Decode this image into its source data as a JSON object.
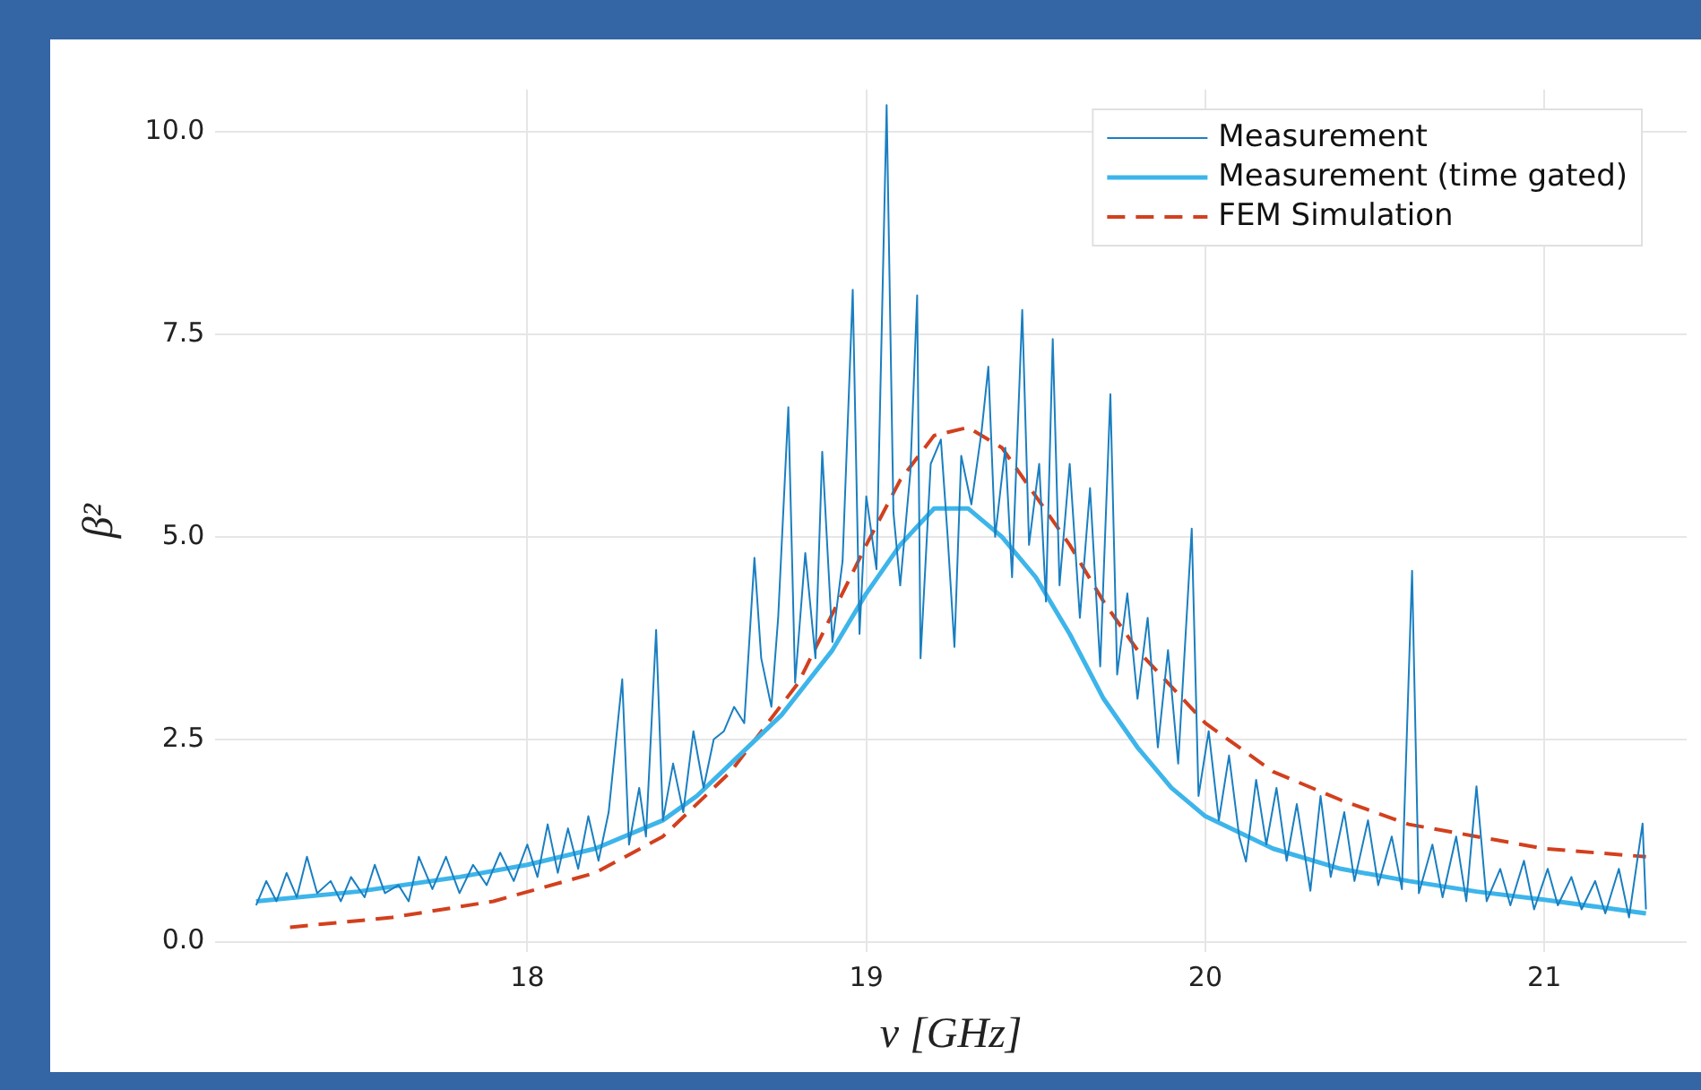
{
  "chart_data": {
    "type": "line",
    "xlabel": "ν [GHz]",
    "ylabel": "β²",
    "xlim": [
      17.08,
      21.42
    ],
    "ylim": [
      -0.13,
      10.52
    ],
    "xticks": [
      18,
      19,
      20,
      21
    ],
    "yticks": [
      {
        "value": 0,
        "label": "0.0"
      },
      2.5,
      {
        "value": 5,
        "label": "5.0"
      },
      7.5,
      {
        "value": 10,
        "label": "10.0"
      }
    ],
    "grid": true,
    "legend": "top right",
    "marker": "none",
    "series": [
      {
        "name": "Measurement",
        "color": "#1a7fc1",
        "line_style": "solid",
        "x": [
          17.2,
          17.23,
          17.26,
          17.29,
          17.32,
          17.35,
          17.38,
          17.42,
          17.45,
          17.48,
          17.52,
          17.55,
          17.58,
          17.62,
          17.65,
          17.68,
          17.72,
          17.76,
          17.8,
          17.84,
          17.88,
          17.92,
          17.96,
          18.0,
          18.03,
          18.06,
          18.09,
          18.12,
          18.15,
          18.18,
          18.21,
          18.24,
          18.28,
          18.3,
          18.33,
          18.35,
          18.38,
          18.4,
          18.43,
          18.46,
          18.49,
          18.52,
          18.55,
          18.58,
          18.61,
          18.64,
          18.67,
          18.69,
          18.72,
          18.74,
          18.77,
          18.79,
          18.82,
          18.85,
          18.87,
          18.9,
          18.93,
          18.96,
          18.98,
          19.0,
          19.03,
          19.06,
          19.08,
          19.1,
          19.13,
          19.15,
          19.16,
          19.19,
          19.22,
          19.24,
          19.26,
          19.28,
          19.31,
          19.34,
          19.36,
          19.38,
          19.41,
          19.43,
          19.46,
          19.48,
          19.51,
          19.53,
          19.55,
          19.57,
          19.6,
          19.63,
          19.66,
          19.69,
          19.72,
          19.74,
          19.77,
          19.8,
          19.83,
          19.86,
          19.89,
          19.92,
          19.96,
          19.98,
          20.01,
          20.04,
          20.07,
          20.1,
          20.12,
          20.15,
          20.18,
          20.21,
          20.24,
          20.27,
          20.31,
          20.34,
          20.37,
          20.41,
          20.44,
          20.48,
          20.51,
          20.55,
          20.58,
          20.61,
          20.63,
          20.67,
          20.7,
          20.74,
          20.77,
          20.8,
          20.83,
          20.87,
          20.9,
          20.94,
          20.97,
          21.01,
          21.04,
          21.08,
          21.11,
          21.15,
          21.18,
          21.22,
          21.25,
          21.29,
          21.3
        ],
        "values": [
          0.45,
          0.75,
          0.5,
          0.85,
          0.55,
          1.05,
          0.6,
          0.75,
          0.5,
          0.8,
          0.55,
          0.95,
          0.6,
          0.7,
          0.5,
          1.05,
          0.65,
          1.05,
          0.6,
          0.95,
          0.7,
          1.1,
          0.75,
          1.2,
          0.8,
          1.45,
          0.85,
          1.4,
          0.9,
          1.55,
          1.0,
          1.6,
          3.24,
          1.2,
          1.9,
          1.3,
          3.85,
          1.5,
          2.2,
          1.6,
          2.6,
          1.9,
          2.5,
          2.6,
          2.9,
          2.7,
          4.74,
          3.5,
          2.9,
          4.0,
          6.6,
          3.2,
          4.8,
          3.5,
          6.05,
          3.7,
          4.7,
          8.05,
          3.8,
          5.5,
          4.6,
          10.33,
          5.3,
          4.4,
          5.8,
          7.98,
          3.5,
          5.9,
          6.2,
          5.0,
          3.64,
          6.0,
          5.4,
          6.3,
          7.1,
          5.0,
          6.1,
          4.5,
          7.8,
          4.9,
          5.9,
          4.2,
          7.44,
          4.4,
          5.9,
          4.0,
          5.6,
          3.4,
          6.76,
          3.3,
          4.3,
          3.0,
          4.0,
          2.4,
          3.6,
          2.2,
          5.1,
          1.8,
          2.6,
          1.5,
          2.3,
          1.3,
          0.99,
          2.0,
          1.2,
          1.9,
          1.0,
          1.7,
          0.63,
          1.8,
          0.8,
          1.6,
          0.75,
          1.5,
          0.7,
          1.3,
          0.65,
          4.58,
          0.6,
          1.2,
          0.55,
          1.3,
          0.5,
          1.92,
          0.5,
          0.9,
          0.45,
          1.0,
          0.4,
          0.9,
          0.45,
          0.8,
          0.4,
          0.75,
          0.35,
          0.9,
          0.3,
          1.46,
          0.4
        ]
      },
      {
        "name": "Measurement (time gated)",
        "color": "#3db5ea",
        "line_style": "solid",
        "x": [
          17.2,
          17.5,
          17.8,
          18.0,
          18.2,
          18.4,
          18.5,
          18.6,
          18.75,
          18.9,
          19.0,
          19.1,
          19.2,
          19.3,
          19.4,
          19.5,
          19.6,
          19.7,
          19.8,
          19.9,
          20.0,
          20.2,
          20.4,
          20.6,
          20.8,
          21.0,
          21.3
        ],
        "values": [
          0.5,
          0.62,
          0.8,
          0.95,
          1.15,
          1.5,
          1.8,
          2.2,
          2.8,
          3.6,
          4.3,
          4.9,
          5.35,
          5.35,
          5.0,
          4.5,
          3.8,
          3.0,
          2.4,
          1.9,
          1.55,
          1.15,
          0.9,
          0.75,
          0.62,
          0.52,
          0.35
        ]
      },
      {
        "name": "FEM Simulation",
        "color": "#d2401e",
        "line_style": "dashed",
        "x": [
          17.3,
          17.6,
          17.9,
          18.2,
          18.4,
          18.6,
          18.8,
          19.0,
          19.1,
          19.2,
          19.3,
          19.4,
          19.5,
          19.6,
          19.7,
          19.8,
          20.0,
          20.2,
          20.4,
          20.6,
          20.8,
          21.0,
          21.3
        ],
        "values": [
          0.18,
          0.3,
          0.5,
          0.85,
          1.3,
          2.1,
          3.2,
          4.9,
          5.7,
          6.25,
          6.35,
          6.1,
          5.5,
          4.9,
          4.2,
          3.6,
          2.7,
          2.1,
          1.75,
          1.45,
          1.3,
          1.15,
          1.05
        ]
      }
    ]
  }
}
